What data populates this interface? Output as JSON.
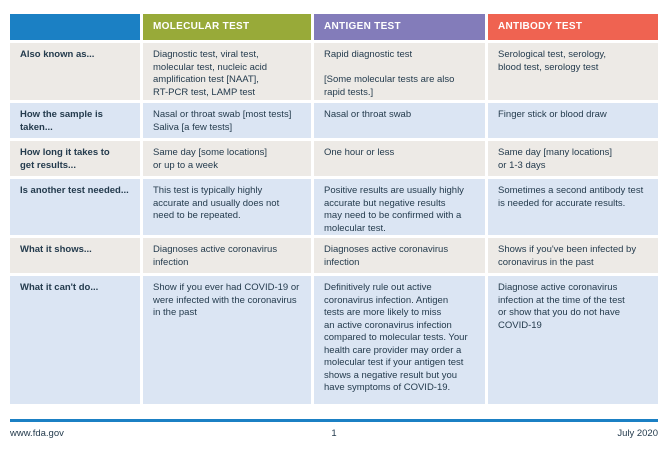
{
  "colors": {
    "header_label_bg": "#1b80c4",
    "molecular_header_bg": "#98aa39",
    "antigen_header_bg": "#837cba",
    "antibody_header_bg": "#ef6351",
    "row_alt_gray": "#edeae6",
    "row_alt_blue": "#dbe5f3",
    "text": "#243b4d",
    "footer_rule": "#1b80c4"
  },
  "table": {
    "columns": [
      {
        "id": "row-label",
        "header": ""
      },
      {
        "id": "molecular",
        "header": "MOLECULAR TEST"
      },
      {
        "id": "antigen",
        "header": "ANTIGEN TEST"
      },
      {
        "id": "antibody",
        "header": "ANTIBODY TEST"
      }
    ],
    "rows": [
      {
        "label": "Also known as...",
        "molecular": "Diagnostic test, viral test,\nmolecular test, nucleic acid\namplification test [NAAT],\nRT-PCR test, LAMP test",
        "antigen": "Rapid diagnostic test\n\n[Some molecular tests are also\nrapid tests.]",
        "antibody": "Serological test, serology,\nblood test, serology test"
      },
      {
        "label": "How the sample is\ntaken...",
        "molecular": "Nasal or throat swab [most tests]\nSaliva [a few tests]",
        "antigen": "Nasal or throat swab",
        "antibody": "Finger stick or blood draw"
      },
      {
        "label": "How long it takes to\nget results...",
        "molecular": "Same day [some locations]\nor up to a week",
        "antigen": "One hour or less",
        "antibody": "Same day [many locations]\nor 1-3 days"
      },
      {
        "label": "Is another test needed...",
        "molecular": "This test is typically highly\naccurate and usually does not\nneed to be repeated.",
        "antigen": "Positive results are usually highly\naccurate but negative results\nmay need to be confirmed with a\nmolecular test.",
        "antibody": "Sometimes a second antibody test\nis needed for accurate results."
      },
      {
        "label": "What it shows...",
        "molecular": "Diagnoses active coronavirus\ninfection",
        "antigen": "Diagnoses active coronavirus\ninfection",
        "antibody": "Shows if you've been infected by\ncoronavirus in the past"
      },
      {
        "label": "What it can't do...",
        "molecular": "Show if you ever had COVID-19 or\nwere infected with the coronavirus\nin the past",
        "antigen": "Definitively rule out active\ncoronavirus infection. Antigen\ntests are more likely to miss\nan active coronavirus infection\ncompared to molecular tests. Your\nhealth care provider may order a\nmolecular test if your antigen test\nshows a negative result but you\nhave symptoms of COVID-19.",
        "antibody": "Diagnose active coronavirus\ninfection at the time of the test\nor show that you do not have\nCOVID-19"
      }
    ]
  },
  "footer": {
    "site": "www.fda.gov",
    "page_number": "1",
    "date": "July 2020"
  }
}
